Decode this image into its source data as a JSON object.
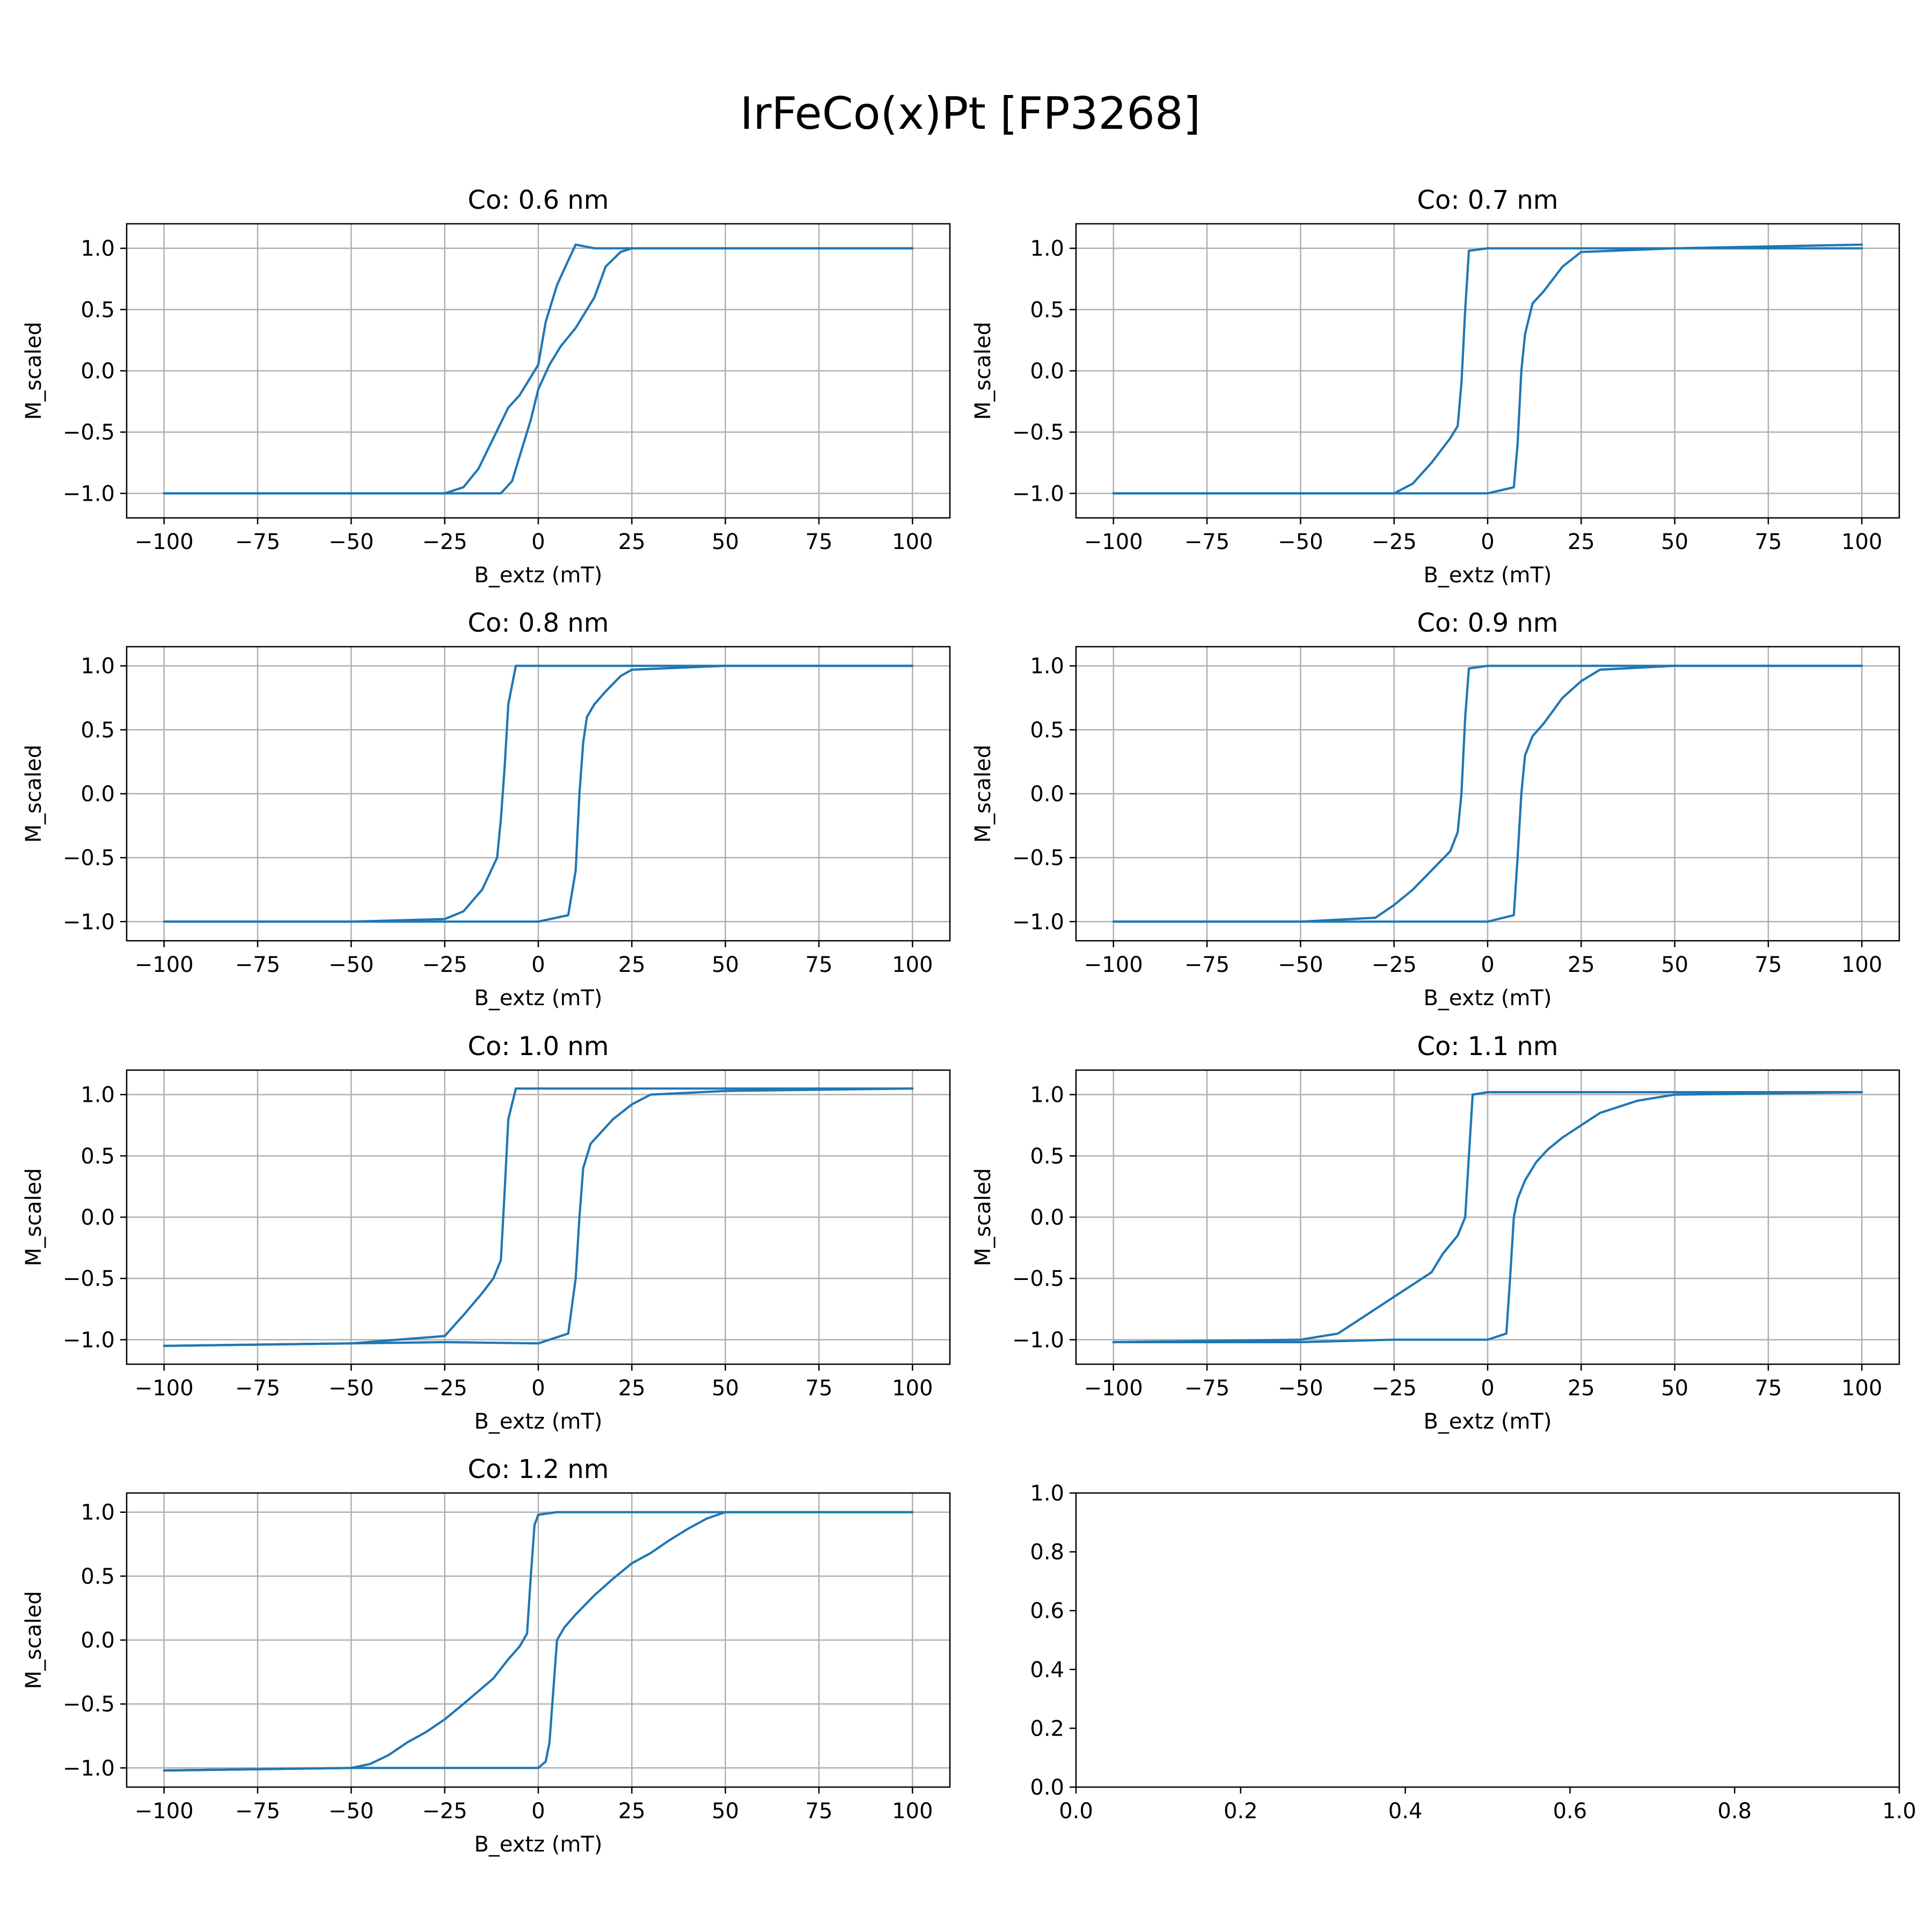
{
  "figure": {
    "suptitle": "IrFeCo(x)Pt [FP3268]"
  },
  "colors": {
    "series": "#1f77b4",
    "grid": "#b0b0b0",
    "axes": "#000000"
  },
  "chart_data": [
    {
      "type": "line",
      "title": "Co: 0.6 nm",
      "xlabel": "B_extz (mT)",
      "ylabel": "M_scaled",
      "xlim": [
        -110,
        110
      ],
      "ylim": [
        -1.2,
        1.2
      ],
      "xticks": [
        -100,
        -75,
        -50,
        -25,
        0,
        25,
        50,
        75,
        100
      ],
      "yticks": [
        -1.0,
        -0.5,
        0.0,
        0.5,
        1.0
      ],
      "grid": true,
      "series": [
        {
          "branch": "descending",
          "x": [
            100,
            50,
            25,
            15,
            10,
            8,
            5,
            2,
            0,
            -2,
            -5,
            -8,
            -12,
            -16,
            -20,
            -25,
            -50,
            -100
          ],
          "y": [
            1.0,
            1.0,
            1.0,
            1.0,
            1.03,
            0.9,
            0.7,
            0.4,
            0.05,
            -0.05,
            -0.2,
            -0.3,
            -0.55,
            -0.8,
            -0.95,
            -1.0,
            -1.0,
            -1.0
          ]
        },
        {
          "branch": "ascending",
          "x": [
            -100,
            -50,
            -25,
            -10,
            -7,
            -5,
            -2,
            0,
            3,
            6,
            10,
            15,
            18,
            22,
            25,
            50,
            100
          ],
          "y": [
            -1.0,
            -1.0,
            -1.0,
            -1.0,
            -0.9,
            -0.7,
            -0.4,
            -0.15,
            0.05,
            0.2,
            0.35,
            0.6,
            0.85,
            0.97,
            1.0,
            1.0,
            1.0
          ]
        }
      ]
    },
    {
      "type": "line",
      "title": "Co: 0.7 nm",
      "xlabel": "B_extz (mT)",
      "ylabel": "M_scaled",
      "xlim": [
        -110,
        110
      ],
      "ylim": [
        -1.2,
        1.2
      ],
      "xticks": [
        -100,
        -75,
        -50,
        -25,
        0,
        25,
        50,
        75,
        100
      ],
      "yticks": [
        -1.0,
        -0.5,
        0.0,
        0.5,
        1.0
      ],
      "grid": true,
      "series": [
        {
          "branch": "descending",
          "x": [
            100,
            50,
            25,
            0,
            -5,
            -6,
            -7,
            -8,
            -10,
            -15,
            -20,
            -25,
            -50,
            -100
          ],
          "y": [
            1.0,
            1.0,
            1.0,
            1.0,
            0.98,
            0.5,
            -0.1,
            -0.45,
            -0.55,
            -0.75,
            -0.92,
            -1.0,
            -1.0,
            -1.0
          ]
        },
        {
          "branch": "ascending",
          "x": [
            -100,
            -50,
            -25,
            0,
            7,
            8,
            9,
            10,
            12,
            15,
            20,
            25,
            50,
            100
          ],
          "y": [
            -1.0,
            -1.0,
            -1.0,
            -1.0,
            -0.95,
            -0.6,
            0.0,
            0.3,
            0.55,
            0.65,
            0.85,
            0.97,
            1.0,
            1.03
          ]
        }
      ]
    },
    {
      "type": "line",
      "title": "Co: 0.8 nm",
      "xlabel": "B_extz (mT)",
      "ylabel": "M_scaled",
      "xlim": [
        -110,
        110
      ],
      "ylim": [
        -1.15,
        1.15
      ],
      "xticks": [
        -100,
        -75,
        -50,
        -25,
        0,
        25,
        50,
        75,
        100
      ],
      "yticks": [
        -1.0,
        -0.5,
        0.0,
        0.5,
        1.0
      ],
      "grid": true,
      "series": [
        {
          "branch": "descending",
          "x": [
            100,
            50,
            25,
            0,
            -6,
            -8,
            -9,
            -10,
            -11,
            -15,
            -20,
            -25,
            -50,
            -100
          ],
          "y": [
            1.0,
            1.0,
            1.0,
            1.0,
            1.0,
            0.7,
            0.2,
            -0.2,
            -0.5,
            -0.75,
            -0.92,
            -0.98,
            -1.0,
            -1.0
          ]
        },
        {
          "branch": "ascending",
          "x": [
            -100,
            -50,
            -25,
            0,
            8,
            10,
            11,
            12,
            13,
            15,
            18,
            22,
            25,
            50,
            100
          ],
          "y": [
            -1.0,
            -1.0,
            -1.0,
            -1.0,
            -0.95,
            -0.6,
            0.0,
            0.4,
            0.6,
            0.7,
            0.8,
            0.92,
            0.97,
            1.0,
            1.0
          ]
        }
      ]
    },
    {
      "type": "line",
      "title": "Co: 0.9 nm",
      "xlabel": "B_extz (mT)",
      "ylabel": "M_scaled",
      "xlim": [
        -110,
        110
      ],
      "ylim": [
        -1.15,
        1.15
      ],
      "xticks": [
        -100,
        -75,
        -50,
        -25,
        0,
        25,
        50,
        75,
        100
      ],
      "yticks": [
        -1.0,
        -0.5,
        0.0,
        0.5,
        1.0
      ],
      "grid": true,
      "series": [
        {
          "branch": "descending",
          "x": [
            100,
            50,
            25,
            0,
            -5,
            -6,
            -7,
            -8,
            -10,
            -15,
            -20,
            -25,
            -30,
            -50,
            -100
          ],
          "y": [
            1.0,
            1.0,
            1.0,
            1.0,
            0.98,
            0.6,
            0.0,
            -0.3,
            -0.45,
            -0.6,
            -0.75,
            -0.87,
            -0.97,
            -1.0,
            -1.0
          ]
        },
        {
          "branch": "ascending",
          "x": [
            -100,
            -50,
            -25,
            0,
            7,
            8,
            9,
            10,
            12,
            15,
            20,
            25,
            30,
            50,
            100
          ],
          "y": [
            -1.0,
            -1.0,
            -1.0,
            -1.0,
            -0.95,
            -0.5,
            0.0,
            0.3,
            0.45,
            0.55,
            0.75,
            0.88,
            0.97,
            1.0,
            1.0
          ]
        }
      ]
    },
    {
      "type": "line",
      "title": "Co: 1.0 nm",
      "xlabel": "B_extz (mT)",
      "ylabel": "M_scaled",
      "xlim": [
        -110,
        110
      ],
      "ylim": [
        -1.2,
        1.2
      ],
      "xticks": [
        -100,
        -75,
        -50,
        -25,
        0,
        25,
        50,
        75,
        100
      ],
      "yticks": [
        -1.0,
        -0.5,
        0.0,
        0.5,
        1.0
      ],
      "grid": true,
      "series": [
        {
          "branch": "descending",
          "x": [
            100,
            50,
            25,
            0,
            -6,
            -8,
            -9,
            -10,
            -12,
            -15,
            -20,
            -25,
            -50,
            -100
          ],
          "y": [
            1.05,
            1.05,
            1.05,
            1.05,
            1.05,
            0.8,
            0.2,
            -0.35,
            -0.5,
            -0.62,
            -0.8,
            -0.97,
            -1.03,
            -1.05
          ]
        },
        {
          "branch": "ascending",
          "x": [
            -100,
            -50,
            -25,
            0,
            8,
            10,
            11,
            12,
            14,
            17,
            20,
            25,
            30,
            50,
            100
          ],
          "y": [
            -1.05,
            -1.03,
            -1.02,
            -1.03,
            -0.95,
            -0.5,
            0.0,
            0.4,
            0.6,
            0.7,
            0.8,
            0.92,
            1.0,
            1.03,
            1.05
          ]
        }
      ]
    },
    {
      "type": "line",
      "title": "Co: 1.1 nm",
      "xlabel": "B_extz (mT)",
      "ylabel": "M_scaled",
      "xlim": [
        -110,
        110
      ],
      "ylim": [
        -1.2,
        1.2
      ],
      "xticks": [
        -100,
        -75,
        -50,
        -25,
        0,
        25,
        50,
        75,
        100
      ],
      "yticks": [
        -1.0,
        -0.5,
        0.0,
        0.5,
        1.0
      ],
      "grid": true,
      "series": [
        {
          "branch": "descending",
          "x": [
            100,
            50,
            25,
            0,
            -4,
            -5,
            -6,
            -8,
            -12,
            -15,
            -20,
            -25,
            -30,
            -35,
            -40,
            -50,
            -100
          ],
          "y": [
            1.02,
            1.02,
            1.02,
            1.02,
            1.0,
            0.5,
            0.0,
            -0.15,
            -0.3,
            -0.45,
            -0.55,
            -0.65,
            -0.75,
            -0.85,
            -0.95,
            -1.0,
            -1.02
          ]
        },
        {
          "branch": "ascending",
          "x": [
            -100,
            -50,
            -25,
            0,
            5,
            6,
            7,
            8,
            10,
            13,
            16,
            20,
            25,
            30,
            40,
            50,
            100
          ],
          "y": [
            -1.02,
            -1.02,
            -1.0,
            -1.0,
            -0.95,
            -0.5,
            0.0,
            0.15,
            0.3,
            0.45,
            0.55,
            0.65,
            0.75,
            0.85,
            0.95,
            1.0,
            1.02
          ]
        }
      ]
    },
    {
      "type": "line",
      "title": "Co: 1.2 nm",
      "xlabel": "B_extz (mT)",
      "ylabel": "M_scaled",
      "xlim": [
        -110,
        110
      ],
      "ylim": [
        -1.15,
        1.15
      ],
      "xticks": [
        -100,
        -75,
        -50,
        -25,
        0,
        25,
        50,
        75,
        100
      ],
      "yticks": [
        -1.0,
        -0.5,
        0.0,
        0.5,
        1.0
      ],
      "grid": true,
      "series": [
        {
          "branch": "descending",
          "x": [
            100,
            50,
            25,
            5,
            0,
            -1,
            -2,
            -3,
            -5,
            -8,
            -12,
            -16,
            -20,
            -25,
            -30,
            -35,
            -40,
            -45,
            -50,
            -100
          ],
          "y": [
            1.0,
            1.0,
            1.0,
            1.0,
            0.98,
            0.9,
            0.5,
            0.05,
            -0.05,
            -0.15,
            -0.3,
            -0.4,
            -0.5,
            -0.62,
            -0.72,
            -0.8,
            -0.9,
            -0.97,
            -1.0,
            -1.02
          ]
        },
        {
          "branch": "ascending",
          "x": [
            -100,
            -50,
            -25,
            0,
            2,
            3,
            4,
            5,
            7,
            10,
            15,
            20,
            25,
            30,
            35,
            40,
            45,
            50,
            100
          ],
          "y": [
            -1.02,
            -1.0,
            -1.0,
            -1.0,
            -0.95,
            -0.8,
            -0.4,
            0.0,
            0.1,
            0.2,
            0.35,
            0.48,
            0.6,
            0.68,
            0.78,
            0.87,
            0.95,
            1.0,
            1.0
          ]
        }
      ]
    },
    {
      "type": "line",
      "title": "",
      "xlabel": "",
      "ylabel": "",
      "xlim": [
        0,
        1
      ],
      "ylim": [
        0,
        1
      ],
      "xticks": [
        0.0,
        0.2,
        0.4,
        0.6,
        0.8,
        1.0
      ],
      "yticks": [
        0.0,
        0.2,
        0.4,
        0.6,
        0.8,
        1.0
      ],
      "grid": false,
      "series": []
    }
  ]
}
